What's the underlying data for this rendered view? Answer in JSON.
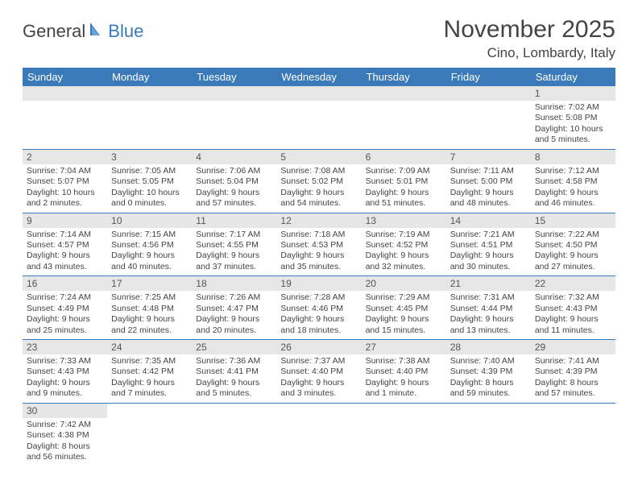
{
  "logo": {
    "text1": "General",
    "text2": "Blue"
  },
  "title": "November 2025",
  "location": "Cino, Lombardy, Italy",
  "colors": {
    "header_bg": "#3a7ab8",
    "header_text": "#ffffff",
    "daynum_bg": "#e6e6e6",
    "border": "#3a7ab8",
    "text": "#444444"
  },
  "weekdays": [
    "Sunday",
    "Monday",
    "Tuesday",
    "Wednesday",
    "Thursday",
    "Friday",
    "Saturday"
  ],
  "weeks": [
    [
      null,
      null,
      null,
      null,
      null,
      null,
      {
        "n": "1",
        "sr": "Sunrise: 7:02 AM",
        "ss": "Sunset: 5:08 PM",
        "dl": "Daylight: 10 hours and 5 minutes."
      }
    ],
    [
      {
        "n": "2",
        "sr": "Sunrise: 7:04 AM",
        "ss": "Sunset: 5:07 PM",
        "dl": "Daylight: 10 hours and 2 minutes."
      },
      {
        "n": "3",
        "sr": "Sunrise: 7:05 AM",
        "ss": "Sunset: 5:05 PM",
        "dl": "Daylight: 10 hours and 0 minutes."
      },
      {
        "n": "4",
        "sr": "Sunrise: 7:06 AM",
        "ss": "Sunset: 5:04 PM",
        "dl": "Daylight: 9 hours and 57 minutes."
      },
      {
        "n": "5",
        "sr": "Sunrise: 7:08 AM",
        "ss": "Sunset: 5:02 PM",
        "dl": "Daylight: 9 hours and 54 minutes."
      },
      {
        "n": "6",
        "sr": "Sunrise: 7:09 AM",
        "ss": "Sunset: 5:01 PM",
        "dl": "Daylight: 9 hours and 51 minutes."
      },
      {
        "n": "7",
        "sr": "Sunrise: 7:11 AM",
        "ss": "Sunset: 5:00 PM",
        "dl": "Daylight: 9 hours and 48 minutes."
      },
      {
        "n": "8",
        "sr": "Sunrise: 7:12 AM",
        "ss": "Sunset: 4:58 PM",
        "dl": "Daylight: 9 hours and 46 minutes."
      }
    ],
    [
      {
        "n": "9",
        "sr": "Sunrise: 7:14 AM",
        "ss": "Sunset: 4:57 PM",
        "dl": "Daylight: 9 hours and 43 minutes."
      },
      {
        "n": "10",
        "sr": "Sunrise: 7:15 AM",
        "ss": "Sunset: 4:56 PM",
        "dl": "Daylight: 9 hours and 40 minutes."
      },
      {
        "n": "11",
        "sr": "Sunrise: 7:17 AM",
        "ss": "Sunset: 4:55 PM",
        "dl": "Daylight: 9 hours and 37 minutes."
      },
      {
        "n": "12",
        "sr": "Sunrise: 7:18 AM",
        "ss": "Sunset: 4:53 PM",
        "dl": "Daylight: 9 hours and 35 minutes."
      },
      {
        "n": "13",
        "sr": "Sunrise: 7:19 AM",
        "ss": "Sunset: 4:52 PM",
        "dl": "Daylight: 9 hours and 32 minutes."
      },
      {
        "n": "14",
        "sr": "Sunrise: 7:21 AM",
        "ss": "Sunset: 4:51 PM",
        "dl": "Daylight: 9 hours and 30 minutes."
      },
      {
        "n": "15",
        "sr": "Sunrise: 7:22 AM",
        "ss": "Sunset: 4:50 PM",
        "dl": "Daylight: 9 hours and 27 minutes."
      }
    ],
    [
      {
        "n": "16",
        "sr": "Sunrise: 7:24 AM",
        "ss": "Sunset: 4:49 PM",
        "dl": "Daylight: 9 hours and 25 minutes."
      },
      {
        "n": "17",
        "sr": "Sunrise: 7:25 AM",
        "ss": "Sunset: 4:48 PM",
        "dl": "Daylight: 9 hours and 22 minutes."
      },
      {
        "n": "18",
        "sr": "Sunrise: 7:26 AM",
        "ss": "Sunset: 4:47 PM",
        "dl": "Daylight: 9 hours and 20 minutes."
      },
      {
        "n": "19",
        "sr": "Sunrise: 7:28 AM",
        "ss": "Sunset: 4:46 PM",
        "dl": "Daylight: 9 hours and 18 minutes."
      },
      {
        "n": "20",
        "sr": "Sunrise: 7:29 AM",
        "ss": "Sunset: 4:45 PM",
        "dl": "Daylight: 9 hours and 15 minutes."
      },
      {
        "n": "21",
        "sr": "Sunrise: 7:31 AM",
        "ss": "Sunset: 4:44 PM",
        "dl": "Daylight: 9 hours and 13 minutes."
      },
      {
        "n": "22",
        "sr": "Sunrise: 7:32 AM",
        "ss": "Sunset: 4:43 PM",
        "dl": "Daylight: 9 hours and 11 minutes."
      }
    ],
    [
      {
        "n": "23",
        "sr": "Sunrise: 7:33 AM",
        "ss": "Sunset: 4:43 PM",
        "dl": "Daylight: 9 hours and 9 minutes."
      },
      {
        "n": "24",
        "sr": "Sunrise: 7:35 AM",
        "ss": "Sunset: 4:42 PM",
        "dl": "Daylight: 9 hours and 7 minutes."
      },
      {
        "n": "25",
        "sr": "Sunrise: 7:36 AM",
        "ss": "Sunset: 4:41 PM",
        "dl": "Daylight: 9 hours and 5 minutes."
      },
      {
        "n": "26",
        "sr": "Sunrise: 7:37 AM",
        "ss": "Sunset: 4:40 PM",
        "dl": "Daylight: 9 hours and 3 minutes."
      },
      {
        "n": "27",
        "sr": "Sunrise: 7:38 AM",
        "ss": "Sunset: 4:40 PM",
        "dl": "Daylight: 9 hours and 1 minute."
      },
      {
        "n": "28",
        "sr": "Sunrise: 7:40 AM",
        "ss": "Sunset: 4:39 PM",
        "dl": "Daylight: 8 hours and 59 minutes."
      },
      {
        "n": "29",
        "sr": "Sunrise: 7:41 AM",
        "ss": "Sunset: 4:39 PM",
        "dl": "Daylight: 8 hours and 57 minutes."
      }
    ],
    [
      {
        "n": "30",
        "sr": "Sunrise: 7:42 AM",
        "ss": "Sunset: 4:38 PM",
        "dl": "Daylight: 8 hours and 56 minutes."
      },
      null,
      null,
      null,
      null,
      null,
      null
    ]
  ]
}
